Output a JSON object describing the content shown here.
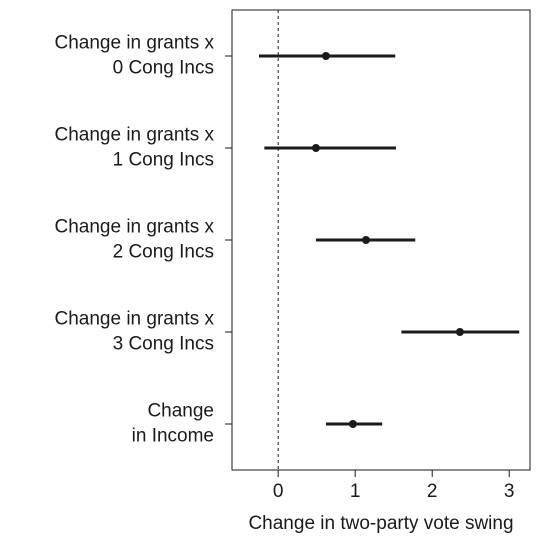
{
  "chart_data": {
    "type": "interval",
    "categories": [
      [
        "Change in grants x",
        "0 Cong Incs"
      ],
      [
        "Change in grants x",
        "1 Cong Incs"
      ],
      [
        "Change in grants x",
        "2 Cong Incs"
      ],
      [
        "Change in grants x",
        "3 Cong Incs"
      ],
      [
        "Change",
        "in Income"
      ]
    ],
    "values": [
      0.62,
      0.49,
      1.14,
      2.36,
      0.97
    ],
    "lower": [
      -0.25,
      -0.18,
      0.49,
      1.6,
      0.62
    ],
    "upper": [
      1.52,
      1.53,
      1.78,
      3.13,
      1.35
    ],
    "color": "#1a1a1a",
    "x_label": "Change in two-party vote swing",
    "xlim": [
      -0.6,
      3.27
    ],
    "xticks": [
      0,
      1,
      2,
      3
    ],
    "refline": 0
  }
}
